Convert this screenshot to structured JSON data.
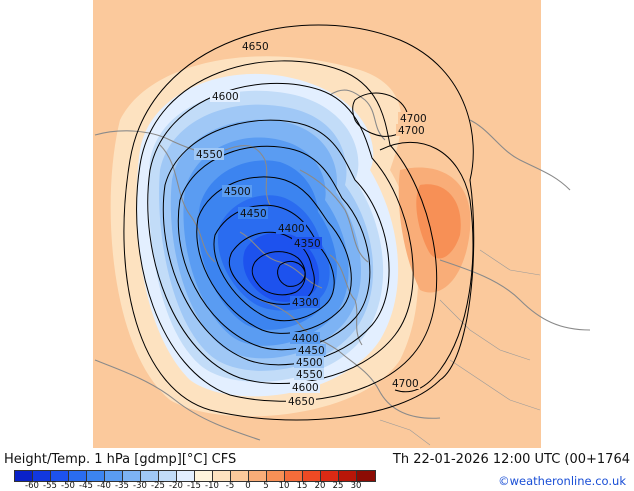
{
  "title_left": "Height/Temp. 1 hPa [gdmp][°C] CFS",
  "title_right": "Th 22-01-2026 12:00 UTC (00+1764",
  "credit": "©weatheronline.co.uk",
  "legend": {
    "colors": [
      "#0a22c8",
      "#1238e0",
      "#1d52ee",
      "#2a6cf0",
      "#3c84f0",
      "#5a9cf2",
      "#7db3f4",
      "#a0c8f6",
      "#c2dcf8",
      "#e3efff",
      "#fff4dc",
      "#fde2c0",
      "#fbc99c",
      "#f9ad78",
      "#f79056",
      "#f46c3a",
      "#ee4a24",
      "#dc2a14",
      "#b81608",
      "#8c0c04"
    ],
    "ticks": [
      "-60",
      "-55",
      "-50",
      "-45",
      "-40",
      "-35",
      "-30",
      "-25",
      "-20",
      "-15",
      "-10",
      "-5",
      "0",
      "5",
      "10",
      "15",
      "20",
      "25",
      "30"
    ]
  },
  "contour_labels": [
    {
      "text": "4650"
    },
    {
      "text": "4600"
    },
    {
      "text": "4550"
    },
    {
      "text": "4500"
    },
    {
      "text": "4450"
    },
    {
      "text": "4400"
    },
    {
      "text": "4350"
    },
    {
      "text": "4300"
    },
    {
      "text": "4700"
    },
    {
      "text": "4700"
    },
    {
      "text": "4400"
    },
    {
      "text": "4450"
    },
    {
      "text": "4500"
    },
    {
      "text": "4550"
    },
    {
      "text": "4600"
    },
    {
      "text": "4650"
    },
    {
      "text": "4700"
    }
  ]
}
